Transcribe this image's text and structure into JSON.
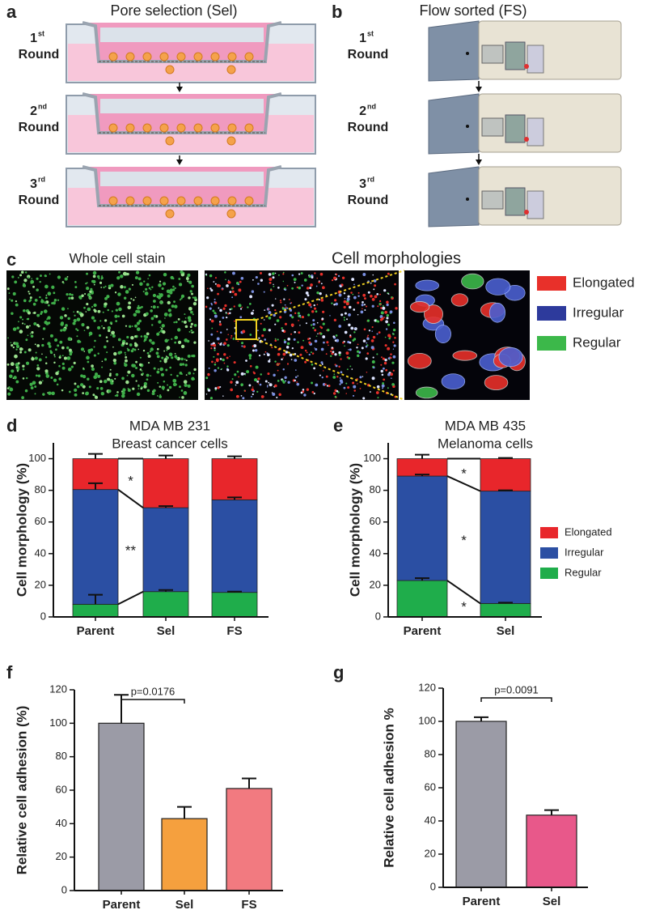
{
  "panels": {
    "a": {
      "label": "a",
      "title": "Pore selection (Sel)",
      "rounds": [
        {
          "number": "1",
          "suffix": "st",
          "word": "Round"
        },
        {
          "number": "2",
          "suffix": "nd",
          "word": "Round"
        },
        {
          "number": "3",
          "suffix": "rd",
          "word": "Round"
        }
      ]
    },
    "b": {
      "label": "b",
      "title": "Flow sorted (FS)",
      "rounds": [
        {
          "number": "1",
          "suffix": "st",
          "word": "Round"
        },
        {
          "number": "2",
          "suffix": "nd",
          "word": "Round"
        },
        {
          "number": "3",
          "suffix": "rd",
          "word": "Round"
        }
      ]
    },
    "c": {
      "label": "c",
      "titles": [
        "Whole cell stain",
        "Cell morphologies"
      ],
      "legend": [
        {
          "name": "Elongated",
          "color": "#e8302a"
        },
        {
          "name": "Irregular",
          "color": "#2d3a9c"
        },
        {
          "name": "Regular",
          "color": "#3cb84a"
        }
      ]
    }
  },
  "chart_data": [
    {
      "type": "stacked_bar",
      "label": "d",
      "title": [
        "MDA MB 231",
        "Breast cancer cells"
      ],
      "y_label": "Cell morphology (%)",
      "categories": [
        "Parent",
        "Sel",
        "FS"
      ],
      "series": [
        {
          "color": "#1fad4b",
          "values": [
            8,
            16,
            15.5
          ],
          "errors": [
            6,
            1,
            0.5
          ]
        },
        {
          "color": "#2b4fa3",
          "values": [
            72.5,
            53,
            58.5
          ],
          "errors": [
            4,
            1,
            1.5
          ],
          "significance": "**"
        },
        {
          "color": "#e8262b",
          "values": [
            19.5,
            31,
            26
          ],
          "errors": [
            3,
            2,
            1.5
          ],
          "significance": "*"
        }
      ],
      "ylim": [
        0,
        110
      ],
      "yticks": [
        0,
        20,
        40,
        60,
        80,
        100
      ]
    },
    {
      "type": "stacked_bar",
      "label": "e",
      "title": [
        "MDA MB 435",
        "Melanoma cells"
      ],
      "y_label": "Cell morphology (%)",
      "categories": [
        "Parent",
        "Sel"
      ],
      "series": [
        {
          "name": "Regular",
          "color": "#1fad4b",
          "values": [
            23,
            8.5
          ],
          "errors": [
            1.5,
            0.5
          ],
          "significance": "*"
        },
        {
          "name": "Irregular",
          "color": "#2b4fa3",
          "values": [
            66,
            71
          ],
          "errors": [
            1,
            0.5
          ],
          "significance": "*"
        },
        {
          "name": "Elongated",
          "color": "#e8262b",
          "values": [
            11,
            20.5
          ],
          "errors": [
            2.5,
            0.5
          ],
          "significance": "*"
        }
      ],
      "legend": true,
      "ylim": [
        0,
        110
      ],
      "yticks": [
        0,
        20,
        40,
        60,
        80,
        100
      ]
    },
    {
      "type": "bar",
      "label": "f",
      "y_label": "Relative cell adhesion (%)",
      "categories": [
        "Parent",
        "Sel",
        "FS"
      ],
      "values": [
        100,
        43,
        61
      ],
      "errors": [
        17,
        7,
        6
      ],
      "colors": [
        "#9b9ba6",
        "#f5a03e",
        "#f27a80"
      ],
      "annotation": "p=0.0176",
      "ylim": [
        0,
        120
      ],
      "yticks": [
        0,
        20,
        40,
        60,
        80,
        100,
        120
      ]
    },
    {
      "type": "bar",
      "label": "g",
      "y_label": "Relative cell adhesion %",
      "categories": [
        "Parent",
        "Sel"
      ],
      "values": [
        100,
        43.5
      ],
      "errors": [
        2.5,
        3
      ],
      "colors": [
        "#9b9ba6",
        "#e8588a"
      ],
      "annotation": "p=0.0091",
      "ylim": [
        0,
        120
      ],
      "yticks": [
        0,
        20,
        40,
        60,
        80,
        100,
        120
      ]
    }
  ]
}
